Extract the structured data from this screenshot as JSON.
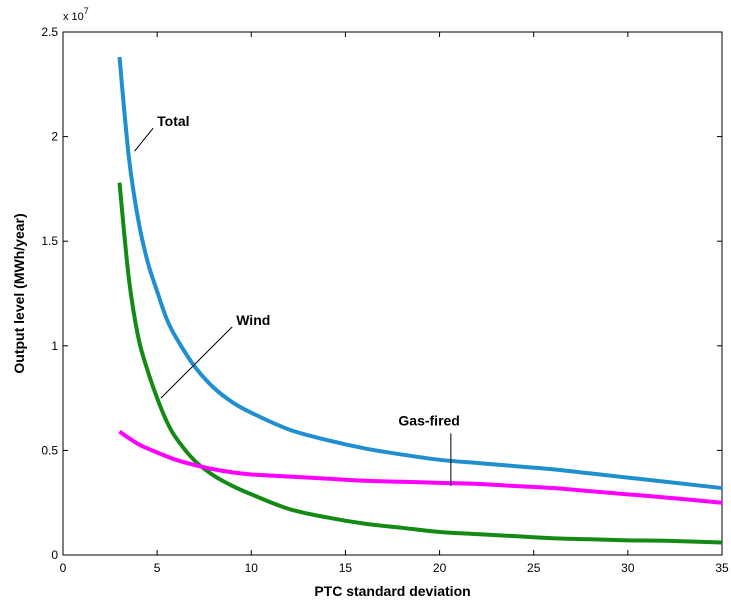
{
  "chart_data": {
    "type": "line",
    "title": "",
    "xlabel": "PTC standard deviation",
    "ylabel": "Output level (MWh/year)",
    "y_multiplier_label": "x 10",
    "y_multiplier_exponent": "7",
    "xlim": [
      0,
      35
    ],
    "ylim": [
      0,
      2.5
    ],
    "xticks": [
      0,
      5,
      10,
      15,
      20,
      25,
      30,
      35
    ],
    "yticks": [
      0,
      0.5,
      1,
      1.5,
      2,
      2.5
    ],
    "ytick_labels": [
      "0",
      "0.5",
      "1",
      "1.5",
      "2",
      "2.5"
    ],
    "grid": false,
    "legend": "none",
    "series": [
      {
        "name": "Total",
        "color": "#1f8fcf",
        "x": [
          3,
          3.5,
          4,
          4.5,
          5,
          5.5,
          6,
          7,
          8,
          9,
          10,
          12,
          14,
          16,
          18,
          20,
          22,
          24,
          26,
          28,
          30,
          32,
          35
        ],
        "y": [
          2.38,
          1.9,
          1.6,
          1.4,
          1.26,
          1.13,
          1.04,
          0.9,
          0.8,
          0.73,
          0.68,
          0.6,
          0.55,
          0.51,
          0.48,
          0.455,
          0.44,
          0.425,
          0.41,
          0.39,
          0.37,
          0.35,
          0.32
        ]
      },
      {
        "name": "Wind",
        "color": "#138a13",
        "x": [
          3,
          3.5,
          4,
          4.5,
          5,
          5.5,
          6,
          7,
          8,
          9,
          10,
          12,
          14,
          16,
          18,
          20,
          22,
          24,
          26,
          28,
          30,
          32,
          35
        ],
        "y": [
          1.78,
          1.32,
          1.04,
          0.88,
          0.75,
          0.64,
          0.56,
          0.45,
          0.38,
          0.33,
          0.29,
          0.22,
          0.18,
          0.15,
          0.13,
          0.11,
          0.1,
          0.09,
          0.08,
          0.075,
          0.07,
          0.068,
          0.06
        ]
      },
      {
        "name": "Gas-fired",
        "color": "#ff00ff",
        "x": [
          3,
          4,
          5,
          6,
          7,
          8,
          9,
          10,
          12,
          14,
          16,
          18,
          20,
          22,
          24,
          26,
          28,
          30,
          32,
          35
        ],
        "y": [
          0.59,
          0.53,
          0.49,
          0.455,
          0.43,
          0.41,
          0.395,
          0.385,
          0.375,
          0.365,
          0.355,
          0.35,
          0.345,
          0.34,
          0.33,
          0.32,
          0.305,
          0.29,
          0.275,
          0.25
        ]
      }
    ],
    "annotations": [
      {
        "text": "Total",
        "series": "Total",
        "point_x": 3.8,
        "point_y": 1.93,
        "text_x": 5,
        "text_y": 2.05
      },
      {
        "text": "Wind",
        "series": "Wind",
        "point_x": 5.2,
        "point_y": 0.75,
        "text_x": 9.2,
        "text_y": 1.1
      },
      {
        "text": "Gas-fired",
        "series": "Gas-fired",
        "point_x": 20.6,
        "point_y": 0.33,
        "text_x": 19.3,
        "text_y": 0.62
      }
    ]
  }
}
